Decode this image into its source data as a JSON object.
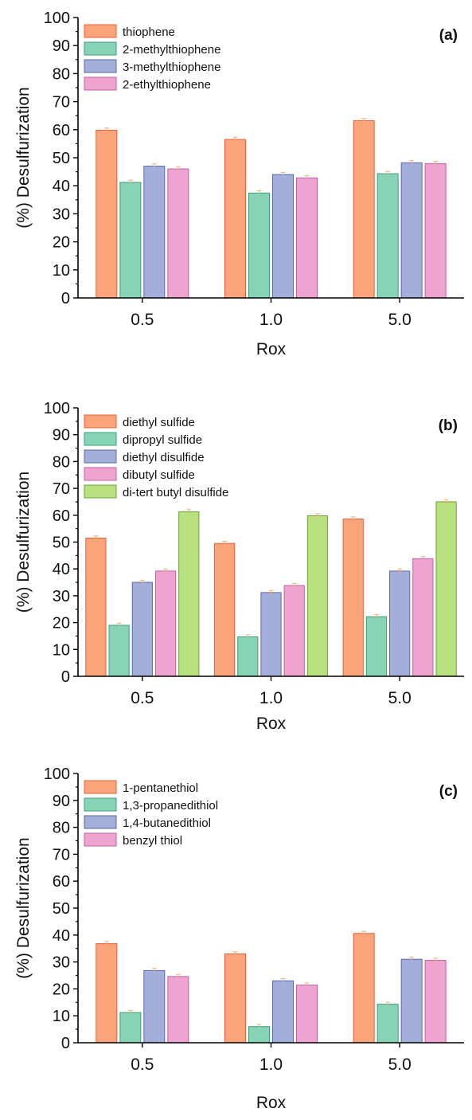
{
  "chart_data": [
    {
      "type": "bar",
      "panel_label": "(a)",
      "xlabel": "Rox",
      "ylabel": "(%) Desulfurization",
      "ylim": [
        0,
        100
      ],
      "yticks": [
        "0",
        "10",
        "20",
        "30",
        "40",
        "50",
        "60",
        "70",
        "80",
        "90",
        "100"
      ],
      "categories": [
        "0.5",
        "1.0",
        "5.0"
      ],
      "legend_position": "top-left",
      "error_bars": true,
      "series": [
        {
          "name": "thiophene",
          "color": "#F9A47B",
          "edge": "#E8613A",
          "values": [
            59.8,
            56.5,
            63.2
          ],
          "errors": [
            0.8,
            0.8,
            0.8
          ]
        },
        {
          "name": "2-methylthiophene",
          "color": "#86D3B6",
          "edge": "#3E9C7D",
          "values": [
            41.2,
            37.4,
            44.3
          ],
          "errors": [
            0.8,
            0.8,
            0.8
          ]
        },
        {
          "name": "3-methylthiophene",
          "color": "#A3AFDA",
          "edge": "#5A69A8",
          "values": [
            47.0,
            44.0,
            48.2
          ],
          "errors": [
            0.8,
            0.8,
            0.8
          ]
        },
        {
          "name": "2-ethylthiophene",
          "color": "#EEA3D0",
          "edge": "#C2609E",
          "values": [
            46.0,
            42.8,
            47.9
          ],
          "errors": [
            0.8,
            0.8,
            0.8
          ]
        }
      ]
    },
    {
      "type": "bar",
      "panel_label": "(b)",
      "xlabel": "Rox",
      "ylabel": "(%) Desulfurization",
      "ylim": [
        0,
        100
      ],
      "yticks": [
        "0",
        "10",
        "20",
        "30",
        "40",
        "50",
        "60",
        "70",
        "80",
        "90",
        "100"
      ],
      "categories": [
        "0.5",
        "1.0",
        "5.0"
      ],
      "legend_position": "top-left",
      "error_bars": true,
      "series": [
        {
          "name": "diethyl sulfide",
          "color": "#F9A47B",
          "edge": "#E8613A",
          "values": [
            51.5,
            49.5,
            58.6
          ],
          "errors": [
            0.8,
            0.8,
            0.8
          ]
        },
        {
          "name": "dipropyl sulfide",
          "color": "#86D3B6",
          "edge": "#3E9C7D",
          "values": [
            19.0,
            14.7,
            22.2
          ],
          "errors": [
            0.8,
            0.8,
            0.8
          ]
        },
        {
          "name": "diethyl disulfide",
          "color": "#A3AFDA",
          "edge": "#5A69A8",
          "values": [
            35.0,
            31.2,
            39.2
          ],
          "errors": [
            0.8,
            0.8,
            0.8
          ]
        },
        {
          "name": "dibutyl sulfide",
          "color": "#EEA3D0",
          "edge": "#C2609E",
          "values": [
            39.2,
            33.8,
            43.8
          ],
          "errors": [
            0.8,
            0.8,
            0.8
          ]
        },
        {
          "name": "di-tert butyl disulfide",
          "color": "#B8E07E",
          "edge": "#6DA23A",
          "values": [
            61.3,
            59.8,
            65.0
          ],
          "errors": [
            0.8,
            0.8,
            0.8
          ]
        }
      ]
    },
    {
      "type": "bar",
      "panel_label": "(c)",
      "xlabel": "Rox",
      "ylabel": "(%) Desulfurization",
      "ylim": [
        0,
        100
      ],
      "yticks": [
        "0",
        "10",
        "20",
        "30",
        "40",
        "50",
        "60",
        "70",
        "80",
        "90",
        "100"
      ],
      "categories": [
        "0.5",
        "1.0",
        "5.0"
      ],
      "legend_position": "top-left",
      "error_bars": true,
      "series": [
        {
          "name": "1-pentanethiol",
          "color": "#F9A47B",
          "edge": "#E8613A",
          "values": [
            36.8,
            33.0,
            40.6
          ],
          "errors": [
            0.8,
            0.8,
            0.8
          ]
        },
        {
          "name": "1,3-propanedithiol",
          "color": "#86D3B6",
          "edge": "#3E9C7D",
          "values": [
            11.2,
            6.0,
            14.3
          ],
          "errors": [
            0.8,
            0.8,
            0.8
          ]
        },
        {
          "name": "1,4-butanedithiol",
          "color": "#A3AFDA",
          "edge": "#5A69A8",
          "values": [
            26.8,
            23.0,
            31.0
          ],
          "errors": [
            0.8,
            0.8,
            0.8
          ]
        },
        {
          "name": "benzyl thiol",
          "color": "#EEA3D0",
          "edge": "#C2609E",
          "values": [
            24.6,
            21.4,
            30.6
          ],
          "errors": [
            0.8,
            0.8,
            0.8
          ]
        }
      ]
    }
  ]
}
